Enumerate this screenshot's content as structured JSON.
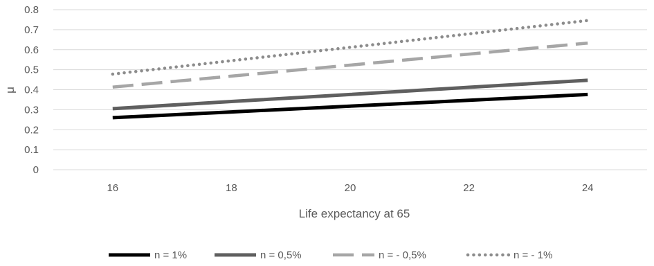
{
  "chart_data": {
    "type": "line",
    "x": [
      16,
      18,
      20,
      22,
      24
    ],
    "xlabel": "Life expectancy at 65",
    "ylabel": "μ",
    "ylim": [
      0,
      0.8
    ],
    "yticks": [
      "0",
      "0.1",
      "0.2",
      "0.3",
      "0.4",
      "0.5",
      "0.6",
      "0.7",
      "0.8"
    ],
    "xticks": [
      "16",
      "18",
      "20",
      "22",
      "24"
    ],
    "grid": "horizontal",
    "legend_position": "bottom",
    "series": [
      {
        "name": "n = 1%",
        "values": [
          0.26,
          0.289,
          0.318,
          0.347,
          0.376
        ],
        "color": "#000000",
        "style": "solid"
      },
      {
        "name": "n = 0,5%",
        "values": [
          0.305,
          0.341,
          0.376,
          0.412,
          0.447
        ],
        "color": "#5f5f5f",
        "style": "solid"
      },
      {
        "name": "n = - 0,5%",
        "values": [
          0.413,
          0.468,
          0.523,
          0.578,
          0.633
        ],
        "color": "#a6a6a6",
        "style": "dashed"
      },
      {
        "name": "n = - 1%",
        "values": [
          0.478,
          0.545,
          0.612,
          0.679,
          0.746
        ],
        "color": "#8c8c8c",
        "style": "dotted"
      }
    ]
  }
}
